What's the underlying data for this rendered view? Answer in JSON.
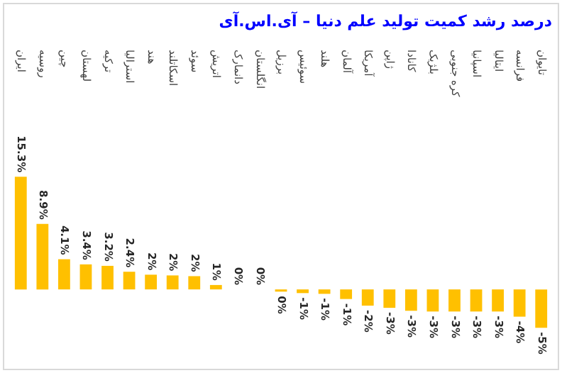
{
  "chart_data": {
    "type": "bar",
    "title": "درصد رشد کمیت تولید علم دنیا – آی.اس.آی",
    "categories": [
      "ایران",
      "روسیه",
      "چین",
      "لهستان",
      "ترکیه",
      "استرالیا",
      "هند",
      "اسکاتلند",
      "سوئد",
      "اتریش",
      "دانمارک",
      "انگلستان",
      "برزیل",
      "سوئیس",
      "هلند",
      "آلمان",
      "آمریکا",
      "ژاپن",
      "کانادا",
      "بلژیک",
      "کره جنوبی",
      "اسپانیا",
      "ایتالیا",
      "فرانسه",
      "تایوان"
    ],
    "values": [
      15.3,
      8.9,
      4.1,
      3.4,
      3.2,
      2.4,
      2,
      1.9,
      1.8,
      0.6,
      0,
      0,
      -0.3,
      -0.5,
      -0.6,
      -1.3,
      -2.2,
      -2.5,
      -2.9,
      -3,
      -3,
      -3,
      -3,
      -3.7,
      -5.2
    ],
    "value_labels": [
      "15.3%",
      "8.9%",
      "4.1%",
      "3.4%",
      "3.2%",
      "2.4%",
      "2%",
      "2%",
      "2%",
      "1%",
      "0%",
      "0%",
      "0%",
      "-1%",
      "-1%",
      "-1%",
      "-2%",
      "-3%",
      "-3%",
      "-3%",
      "-3%",
      "-3%",
      "-3%",
      "-4%",
      "-5%"
    ],
    "color": "#ffc000"
  }
}
